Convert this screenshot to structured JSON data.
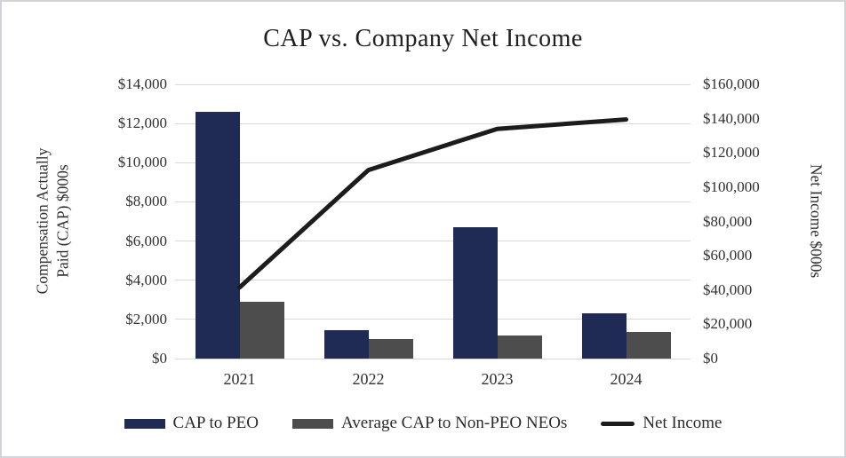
{
  "chart_data": {
    "type": "combo_bar_line",
    "title": "CAP vs. Company Net Income",
    "categories": [
      "2021",
      "2022",
      "2023",
      "2024"
    ],
    "bar_series": [
      {
        "name": "CAP to PEO",
        "color": "#1F2A55",
        "axis": "left",
        "values": [
          12600,
          1450,
          6700,
          2300
        ]
      },
      {
        "name": "Average CAP to Non-PEO NEOs",
        "color": "#4D4D4D",
        "axis": "left",
        "values": [
          2900,
          1000,
          1200,
          1350
        ]
      }
    ],
    "line_series": [
      {
        "name": "Net Income",
        "color": "#1C1C1C",
        "axis": "right",
        "values": [
          41500,
          110000,
          134000,
          139500
        ]
      }
    ],
    "left_axis": {
      "label": "Compensation Actually Paid (CAP) $000s",
      "label_lines": [
        "Compensation Actually",
        "Paid (CAP) $000s"
      ],
      "min": 0,
      "max": 14000,
      "step": 2000,
      "tick_labels_top_to_bottom": [
        "$14,000",
        "$12,000",
        "$10,000",
        "$8,000",
        "$6,000",
        "$4,000",
        "$2,000",
        "$0"
      ]
    },
    "right_axis": {
      "label": "Net Income $000s",
      "min": 0,
      "max": 160000,
      "step": 20000,
      "tick_labels_top_to_bottom": [
        "$160,000",
        "$140,000",
        "$120,000",
        "$100,000",
        "$80,000",
        "$60,000",
        "$40,000",
        "$20,000",
        "$0"
      ]
    },
    "grid": true,
    "grid_color": "#D9D9D9",
    "legend_position": "bottom"
  }
}
